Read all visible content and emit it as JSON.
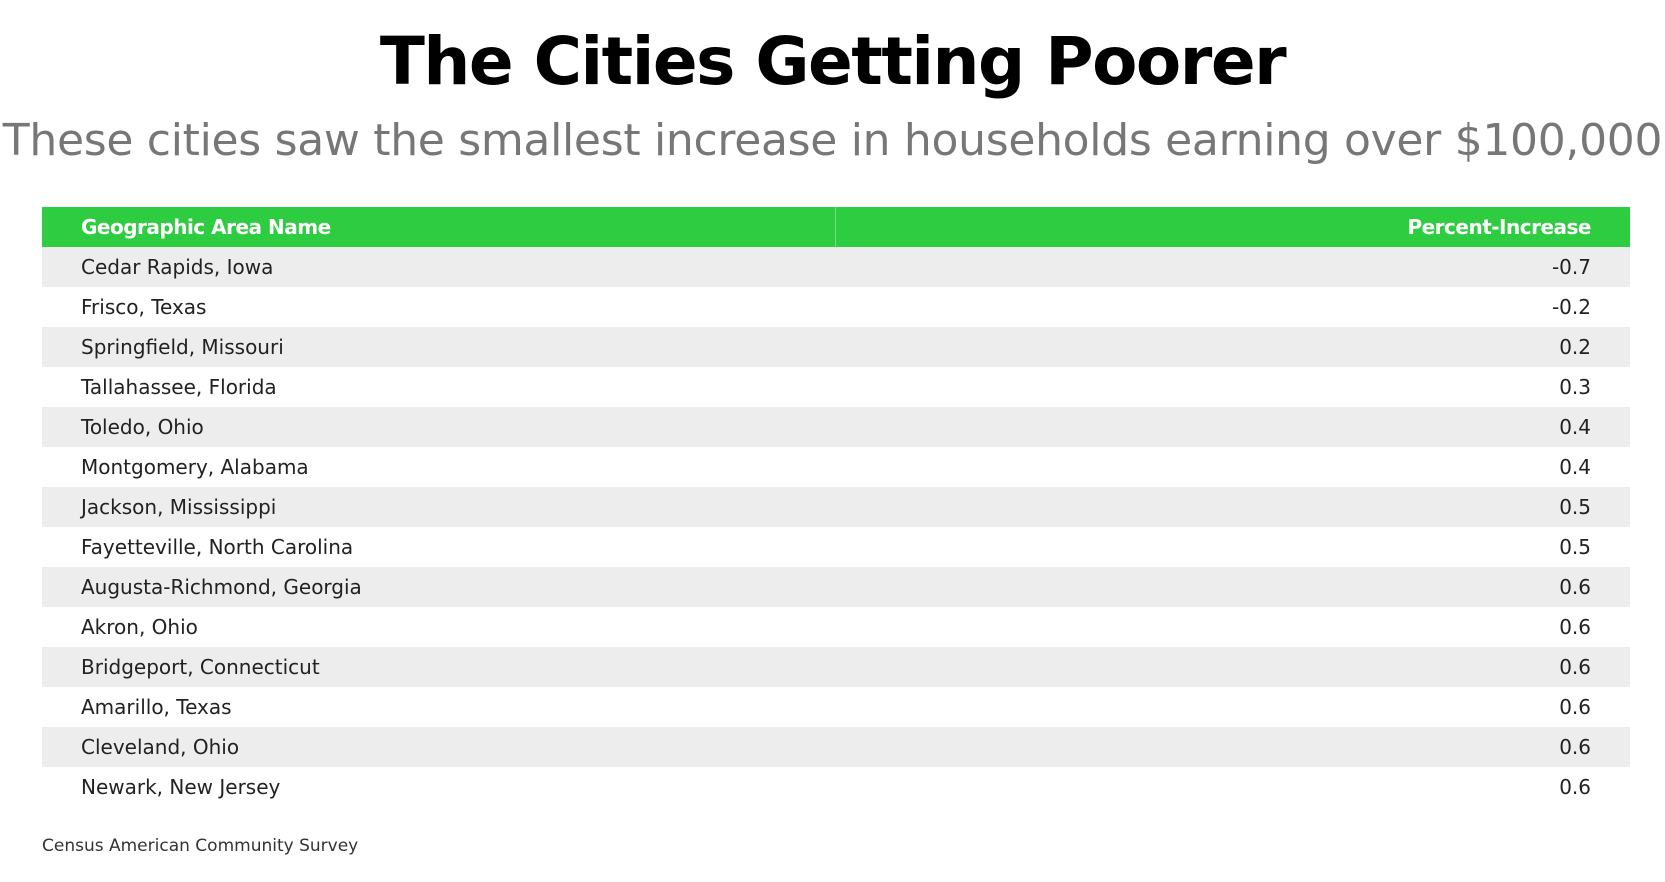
{
  "colors": {
    "header_bg": "#2ecc40",
    "row_odd_bg": "#ededed",
    "row_even_bg": "#ffffff",
    "subtitle": "#777777"
  },
  "chart_data": {
    "type": "table",
    "title": "The Cities Getting Poorer",
    "subtitle": "These cities saw the smallest increase in households earning over $100,000",
    "columns": [
      "Geographic Area Name",
      "Percent-Increase"
    ],
    "rows": [
      {
        "name": "Cedar Rapids, Iowa",
        "value": "-0.7"
      },
      {
        "name": "Frisco, Texas",
        "value": "-0.2"
      },
      {
        "name": "Springfield, Missouri",
        "value": "0.2"
      },
      {
        "name": "Tallahassee, Florida",
        "value": "0.3"
      },
      {
        "name": "Toledo, Ohio",
        "value": "0.4"
      },
      {
        "name": "Montgomery, Alabama",
        "value": "0.4"
      },
      {
        "name": "Jackson, Mississippi",
        "value": "0.5"
      },
      {
        "name": "Fayetteville, North Carolina",
        "value": "0.5"
      },
      {
        "name": "Augusta-Richmond, Georgia",
        "value": "0.6"
      },
      {
        "name": "Akron, Ohio",
        "value": "0.6"
      },
      {
        "name": "Bridgeport, Connecticut",
        "value": "0.6"
      },
      {
        "name": "Amarillo, Texas",
        "value": "0.6"
      },
      {
        "name": "Cleveland, Ohio",
        "value": "0.6"
      },
      {
        "name": "Newark, New Jersey",
        "value": "0.6"
      }
    ],
    "source": "Census American Community Survey"
  }
}
